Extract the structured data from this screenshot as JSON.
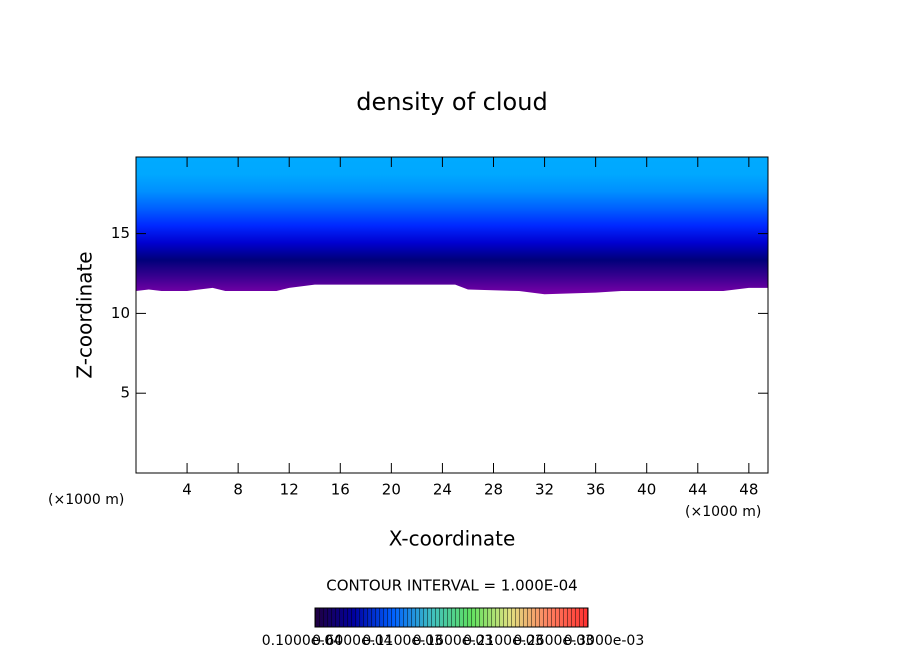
{
  "chart_data": {
    "type": "contour",
    "title": "density of cloud",
    "x_label": "X-coordinate",
    "y_label": "Z-coordinate",
    "x_unit": "(×1000 m)",
    "y_unit": "(×1000 m)",
    "xlim": [
      0,
      49.5
    ],
    "ylim": [
      0,
      19.8
    ],
    "xticks": [
      4,
      8,
      12,
      16,
      20,
      24,
      28,
      32,
      36,
      40,
      44,
      48
    ],
    "yticks": [
      5,
      10,
      15
    ],
    "x": [
      0,
      1,
      2,
      4,
      6,
      7,
      11,
      12,
      14,
      18,
      22,
      25,
      26,
      30,
      32,
      36,
      38,
      42,
      46,
      48,
      49.5
    ],
    "cloud_base": [
      11.4,
      11.5,
      11.4,
      11.4,
      11.6,
      11.4,
      11.4,
      11.6,
      11.8,
      11.8,
      11.8,
      11.8,
      11.5,
      11.4,
      11.2,
      11.3,
      11.4,
      11.4,
      11.4,
      11.6,
      11.6
    ],
    "colors": [
      "#7a00a8",
      "#3a0090",
      "#00007a",
      "#0000d0",
      "#0028ff",
      "#0060ff",
      "#0090ff",
      "#00a8ff",
      "#00aaff"
    ],
    "contour_interval": "CONTOUR INTERVAL = 1.000E-04",
    "colorbar_colors": [
      "#200040",
      "#0000a0",
      "#0060ff",
      "#40c0c0",
      "#60e060",
      "#e0e080",
      "#ff8060",
      "#ff3030"
    ],
    "colorbar_labels": [
      "0.1000e-04",
      "0.6000e-04",
      "0.1100e-03",
      "0.1600e-03",
      "0.2100e-03",
      "0.2600e-03",
      "0.3000e-03"
    ]
  }
}
